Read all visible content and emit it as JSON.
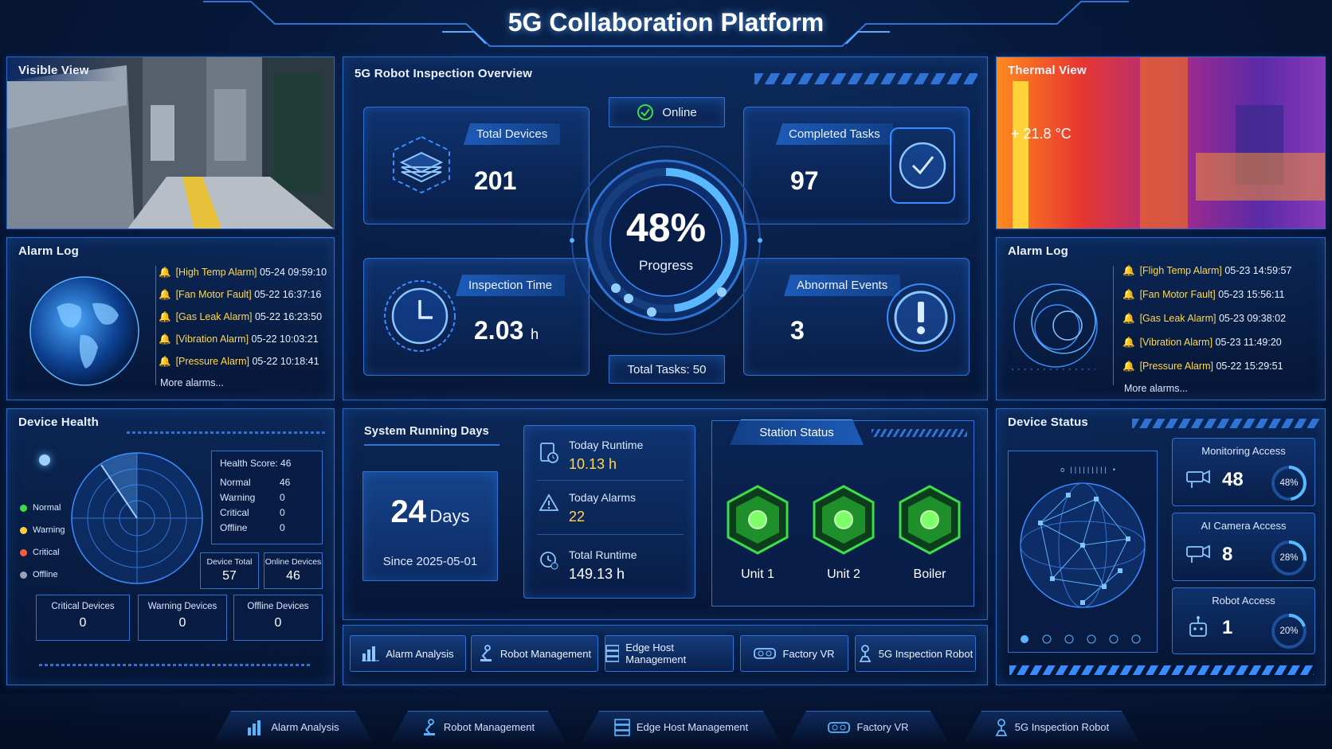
{
  "app": {
    "title": "5G Collaboration Platform"
  },
  "visible_view": {
    "title": "Visible View"
  },
  "thermal_view": {
    "title": "Thermal View",
    "temperature": "21.8 °C"
  },
  "alarm_log_left": {
    "title": "Alarm Log",
    "items": [
      {
        "type": "[High Temp Alarm]",
        "time": "05-24 09:59:10"
      },
      {
        "type": "[Fan Motor Fault]",
        "time": "05-22 16:37:16"
      },
      {
        "type": "[Gas Leak Alarm]",
        "time": "05-22 16:23:50"
      },
      {
        "type": "[Vibration Alarm]",
        "time": "05-22 10:03:21"
      },
      {
        "type": "[Pressure Alarm]",
        "time": "05-22 10:18:41"
      }
    ],
    "more": "More alarms..."
  },
  "alarm_log_right": {
    "title": "Alarm Log",
    "items": [
      {
        "type": "[Fligh Temp Alarm]",
        "time": "05-23 14:59:57"
      },
      {
        "type": "[Fan Motor Fault]",
        "time": "05-23 15:56:11"
      },
      {
        "type": "[Gas Leak Alarm]",
        "time": "05-23 09:38:02"
      },
      {
        "type": "[Vibration Alarm]",
        "time": "05-23 11:49:20"
      },
      {
        "type": "[Pressure Alarm]",
        "time": "05-22 15:29:51"
      }
    ],
    "more": "More alarms..."
  },
  "overview": {
    "title": "5G Robot Inspection Overview",
    "status": "Online",
    "progress_value": 48,
    "progress_text": "48%",
    "progress_label": "Progress",
    "total_tasks": "Total Tasks: 50",
    "total_devices": {
      "label": "Total Devices",
      "value": "201"
    },
    "completed_tasks": {
      "label": "Completed Tasks",
      "value": "97"
    },
    "inspection_time": {
      "label": "Inspection Time",
      "value": "2.03",
      "unit": "h"
    },
    "abnormal_events": {
      "label": "Abnormal Events",
      "value": "3"
    }
  },
  "device_health": {
    "title": "Device Health",
    "legend": [
      {
        "label": "Normal",
        "color": "#3ddc4a"
      },
      {
        "label": "Warning",
        "color": "#ffd23a"
      },
      {
        "label": "Critical",
        "color": "#ff5a3c"
      },
      {
        "label": "Offline",
        "color": "#9aa3b5"
      }
    ],
    "score_label": "Health Score:",
    "score": "46",
    "rows": [
      {
        "label": "Normal",
        "value": "46"
      },
      {
        "label": "Warning",
        "value": "0"
      },
      {
        "label": "Critical",
        "value": "0"
      },
      {
        "label": "Offline",
        "value": "0"
      }
    ],
    "device_total": {
      "label": "Device Total",
      "value": "57"
    },
    "online_devices": {
      "label": "Online Devices",
      "value": "46"
    },
    "critical_devices": {
      "label": "Critical Devices",
      "value": "0"
    },
    "warning_devices": {
      "label": "Warning Devices",
      "value": "0"
    },
    "offline_devices": {
      "label": "Offline Devices",
      "value": "0"
    }
  },
  "running": {
    "title": "System Running Days",
    "days": "24",
    "days_unit": "Days",
    "since": "Since 2025-05-01",
    "today_runtime_label": "Today Runtime",
    "today_runtime": "10.13 h",
    "today_alarms_label": "Today Alarms",
    "today_alarms": "22",
    "total_runtime_label": "Total Runtime",
    "total_runtime": "149.13 h"
  },
  "station": {
    "title": "Station Status",
    "units": [
      "Unit 1",
      "Unit 2",
      "Boiler"
    ],
    "status_color": "#3ddc4a"
  },
  "device_status": {
    "title": "Device Status",
    "monitoring": {
      "label": "Monitoring Access",
      "value": "48",
      "percent": "48%",
      "fraction": 0.48
    },
    "ai_camera": {
      "label": "AI Camera Access",
      "value": "8",
      "percent": "28%",
      "fraction": 0.28
    },
    "robot": {
      "label": "Robot Access",
      "value": "1",
      "percent": "20%",
      "fraction": 0.2
    }
  },
  "buttons": [
    "Alarm Analysis",
    "Robot Management",
    "Edge Host Management",
    "Factory VR",
    "5G Inspection Robot"
  ],
  "bottom_nav": [
    "Alarm Analysis",
    "Robot Management",
    "Edge Host Management",
    "Factory VR",
    "5G Inspection Robot"
  ],
  "colors": {
    "accent": "#2f74d4",
    "highlight": "#ffd84a",
    "ok": "#3ddc4a"
  }
}
